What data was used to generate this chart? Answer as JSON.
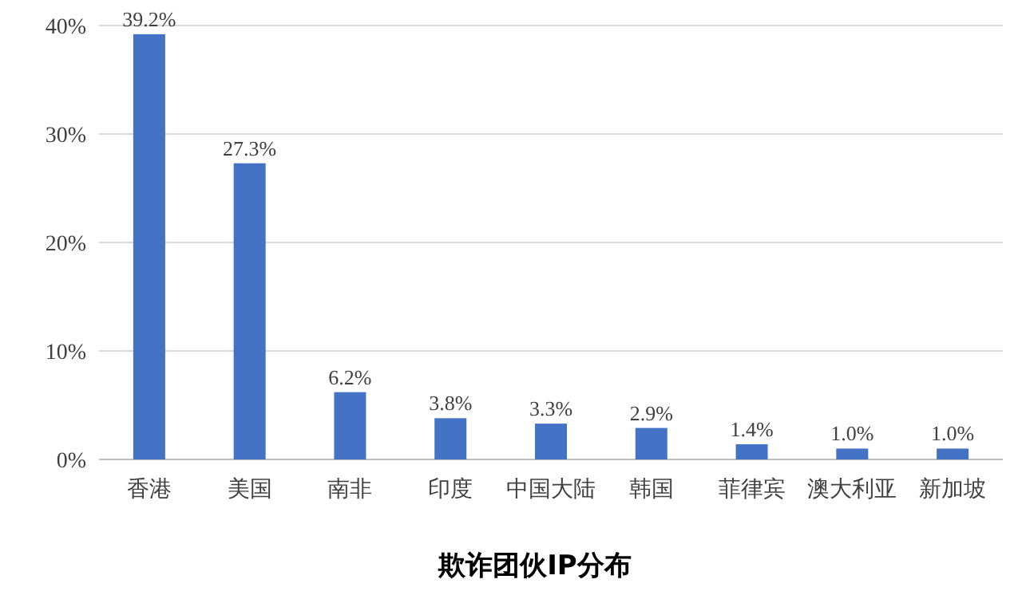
{
  "chart_data": {
    "type": "bar",
    "title": "欺诈团伙IP分布",
    "categories": [
      "香港",
      "美国",
      "南非",
      "印度",
      "中国大陆",
      "韩国",
      "菲律宾",
      "澳大利亚",
      "新加坡"
    ],
    "values": [
      39.2,
      27.3,
      6.2,
      3.8,
      3.3,
      2.9,
      1.4,
      1.0,
      1.0
    ],
    "value_labels": [
      "39.2%",
      "27.3%",
      "6.2%",
      "3.8%",
      "3.3%",
      "2.9%",
      "1.4%",
      "1.0%",
      "1.0%"
    ],
    "color": "#4472c4",
    "ylim": [
      0,
      40
    ],
    "yticks": [
      {
        "value": 0,
        "label": "0%"
      },
      {
        "value": 10,
        "label": "10%"
      },
      {
        "value": 20,
        "label": "20%"
      },
      {
        "value": 30,
        "label": "30%"
      },
      {
        "value": 40,
        "label": "40%"
      }
    ],
    "grid": "y"
  }
}
